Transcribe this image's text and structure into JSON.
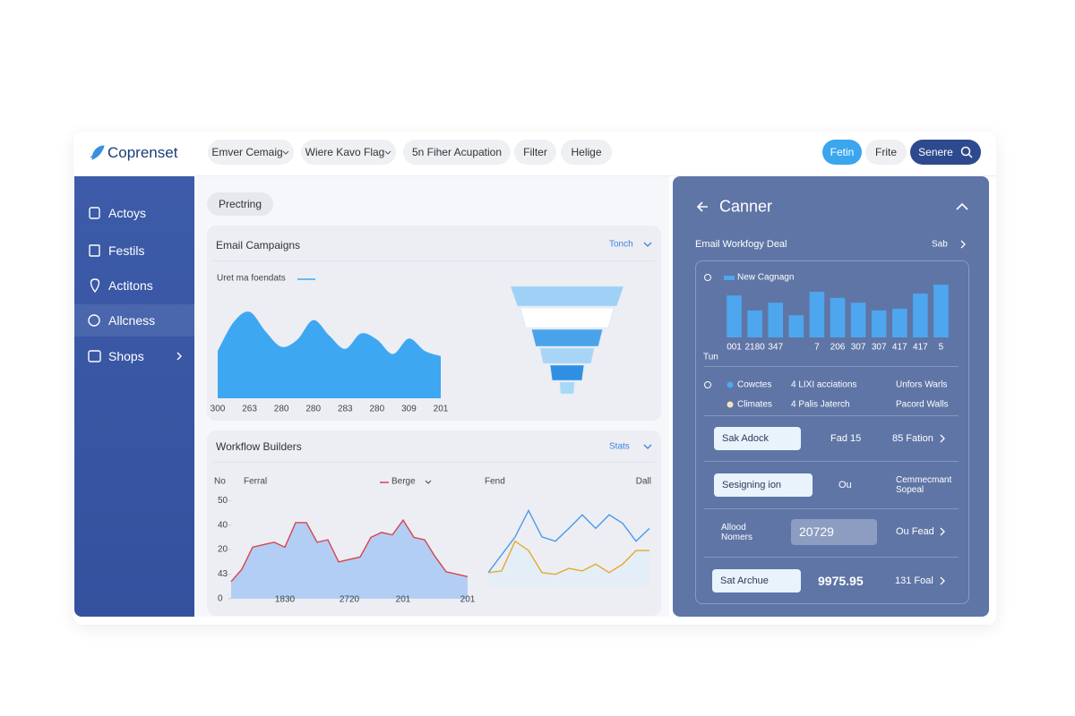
{
  "header": {
    "brand": "Coprenset",
    "tabs": [
      "Emver Cemaig",
      "Wiere Kavo Flag",
      "5n Fiher Acupation",
      "Filter",
      "Helige"
    ],
    "buttons": [
      "Fetin",
      "Frite",
      "Senere"
    ]
  },
  "sidebar": {
    "items": [
      "Actoys",
      "Festils",
      "Actitons",
      "Allcness",
      "Shops"
    ]
  },
  "main": {
    "chip": "Prectring",
    "email_card": {
      "title": "Email Campaigns",
      "link": "Tonch",
      "chart_data": {
        "type": "area",
        "legend": "Uret ma foendats",
        "color": "#3ea7f2",
        "categories": [
          "300",
          null,
          "263",
          null,
          "280",
          null,
          "280",
          null,
          "283",
          null,
          "280",
          null,
          "309",
          null,
          "201"
        ],
        "values": [
          46,
          74,
          84,
          65,
          50,
          57,
          76,
          61,
          48,
          63,
          57,
          43,
          58,
          46,
          41
        ],
        "ylim": [
          0,
          100
        ]
      },
      "funnel": {
        "type": "funnel",
        "values": [
          100,
          83,
          63,
          48,
          30,
          13
        ],
        "colors": [
          "#9fd0f6",
          "#ffffff",
          "#4aa3ea",
          "#a8d4f6",
          "#2f8fe3",
          "#a7d8f5"
        ]
      }
    },
    "workflow_card": {
      "title": "Workflow Builders",
      "link": "Stats",
      "chart_data": {
        "type": "line",
        "y_label": "No",
        "subtitle": "Ferral",
        "categories": [
          null,
          null,
          null,
          null,
          null,
          "1830",
          null,
          null,
          null,
          null,
          null,
          "2720",
          null,
          null,
          null,
          null,
          "201",
          null,
          null,
          null,
          null,
          null,
          "201"
        ],
        "series": [
          {
            "name": "Berge",
            "color": "#d8434b",
            "fill": "#a9c8f3",
            "values": [
              7,
              12,
              21,
              22,
              23,
              21,
              31,
              31,
              23,
              24,
              15,
              16,
              17,
              25,
              27,
              26,
              32,
              25,
              24,
              17,
              11,
              10,
              9
            ]
          }
        ],
        "ylim": [
          0,
          47
        ],
        "yticks": [
          {
            "value": 40,
            "label": "50"
          },
          {
            "value": 30,
            "label": "40"
          },
          {
            "value": 20,
            "label": "20"
          },
          {
            "value": 10,
            "label": "43"
          },
          0
        ]
      },
      "mini_chart": {
        "type": "line",
        "title": "Fend",
        "corner_label": "Dall",
        "ylim": [
          0,
          100
        ],
        "series": [
          {
            "color": "#4b9be8",
            "values": [
              16,
              37,
              58,
              89,
              58,
              53,
              68,
              84,
              68,
              84,
              74,
              53,
              68
            ]
          },
          {
            "color": "#e6a92b",
            "fill": "#e3edf7",
            "values": [
              16,
              18,
              53,
              42,
              16,
              14,
              21,
              18,
              26,
              16,
              26,
              42,
              42
            ]
          }
        ]
      }
    }
  },
  "panel": {
    "title": "Canner",
    "subtitle": "Email Workfogy Deal",
    "link": "Sab",
    "chart_data": {
      "type": "bar",
      "series": [
        {
          "name": "New Cagnagn",
          "color": "#4ea6ee",
          "values": [
            70,
            45,
            58,
            37,
            76,
            66,
            58,
            45,
            48,
            73,
            88
          ]
        }
      ],
      "categories": [
        "001",
        "2180",
        "347",
        null,
        "7",
        "206",
        "307",
        "307",
        "417",
        "417",
        "5"
      ],
      "x_label": "Tun",
      "ylim": [
        0,
        100
      ]
    },
    "legend_rows": [
      [
        "Cowctes",
        "4 LIXI acciations",
        "Unfors Warls"
      ],
      [
        "Climates",
        "4 Palis Jaterch",
        "Pacord Walls"
      ]
    ],
    "legend_colors": [
      "#4ea6ee",
      "#f3e3b8"
    ],
    "rows": [
      {
        "button": "Sak Adock",
        "value": "Fad 15",
        "detail": "85 Fation"
      },
      {
        "button": "Sesigning ion",
        "value": "Ou",
        "detail": "Cemmecmant Sopeal"
      },
      {
        "label": "Allood Nomers",
        "value": "20729",
        "detail": "Ou Fead"
      },
      {
        "button": "Sat Archue",
        "value": "9975.95",
        "detail": "131 Foal"
      }
    ]
  }
}
